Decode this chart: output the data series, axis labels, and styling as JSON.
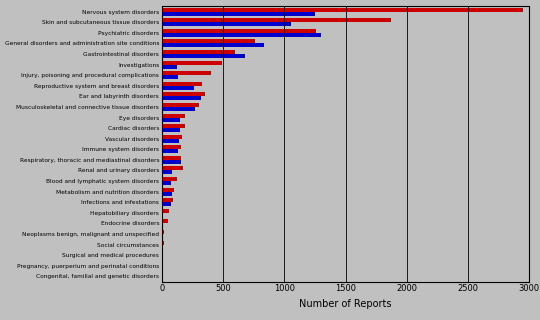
{
  "categories": [
    "Nervous system disorders",
    "Skin and subcutaneous tissue disorders",
    "Psychiatric disorders",
    "General disorders and administration site conditions",
    "Gastrointestinal disorders",
    "Investigations",
    "Injury, poisoning and procedural complications",
    "Reproductive system and breast disorders",
    "Ear and labyrinth disorders",
    "Musculoskeletal and connective tissue disorders",
    "Eye disorders",
    "Cardiac disorders",
    "Vascular disorders",
    "Immune system disorders",
    "Respiratory, thoracic and mediastinal disorders",
    "Renal and urinary disorders",
    "Blood and lymphatic system disorders",
    "Metabolism and nutrition disorders",
    "Infections and infestations",
    "Hepatobiliary disorders",
    "Endocrine disorders",
    "Neoplasms benign, malignant and unspecified",
    "Social circumstances",
    "Surgical and medical procedures",
    "Pregnancy, puerperium and perinatal conditions",
    "Congenital, familial and genetic disorders"
  ],
  "consumer_values": [
    1250,
    1050,
    1300,
    830,
    680,
    120,
    130,
    260,
    320,
    270,
    150,
    145,
    135,
    130,
    155,
    80,
    70,
    80,
    70,
    10,
    10,
    10,
    8,
    8,
    8,
    5
  ],
  "hcp_values": [
    2950,
    1870,
    1260,
    760,
    600,
    490,
    400,
    330,
    350,
    300,
    185,
    190,
    165,
    155,
    155,
    170,
    125,
    100,
    90,
    55,
    45,
    20,
    15,
    12,
    12,
    8
  ],
  "consumer_color": "#0000CC",
  "hcp_color": "#CC0000",
  "xlabel": "Number of Reports",
  "xlim": [
    0,
    3000
  ],
  "xticks": [
    0,
    500,
    1000,
    1500,
    2000,
    2500,
    3000
  ],
  "background_color": "#C0C0C0",
  "bar_height": 0.38,
  "figsize": [
    5.4,
    3.2
  ],
  "dpi": 100,
  "label_fontsize": 4.2,
  "tick_fontsize": 6.0,
  "axis_label_fontsize": 7.0
}
